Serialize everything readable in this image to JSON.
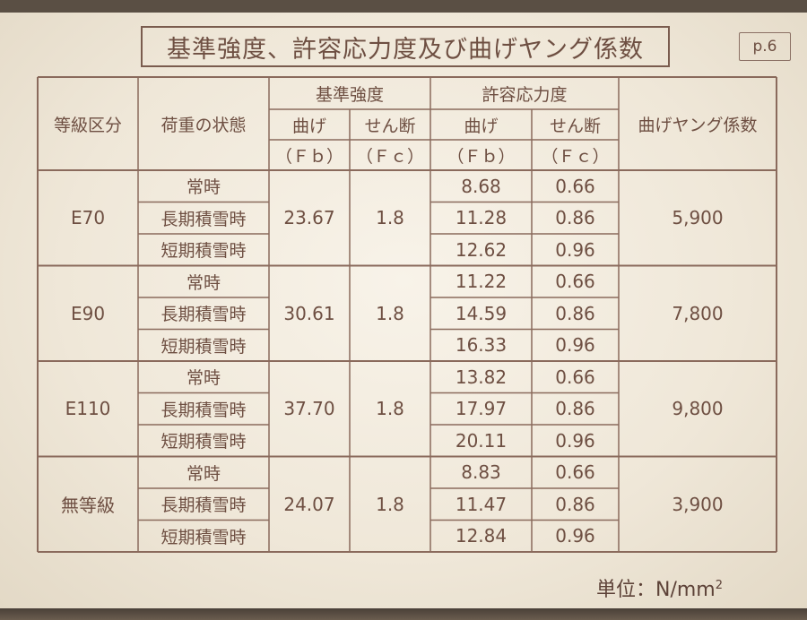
{
  "title": "基準強度、許容応力度及び曲げヤング係数",
  "page_label": "p.6",
  "headers": {
    "grade": "等級区分",
    "load_state": "荷重の状態",
    "base_strength": "基準強度",
    "allowable_stress": "許容応力度",
    "bending": "曲げ",
    "shear": "せん断",
    "fb": "（Ｆｂ）",
    "fc": "（Ｆｃ）",
    "young_modulus": "曲げヤング係数"
  },
  "conditions": [
    "常時",
    "長期積雪時",
    "短期積雪時"
  ],
  "grades": [
    {
      "name": "E70",
      "fb": "23.67",
      "fc": "1.8",
      "allow_bend": [
        "8.68",
        "11.28",
        "12.62"
      ],
      "allow_shear": [
        "0.66",
        "0.86",
        "0.96"
      ],
      "young": "5,900"
    },
    {
      "name": "E90",
      "fb": "30.61",
      "fc": "1.8",
      "allow_bend": [
        "11.22",
        "14.59",
        "16.33"
      ],
      "allow_shear": [
        "0.66",
        "0.86",
        "0.96"
      ],
      "young": "7,800"
    },
    {
      "name": "E110",
      "fb": "37.70",
      "fc": "1.8",
      "allow_bend": [
        "13.82",
        "17.97",
        "20.11"
      ],
      "allow_shear": [
        "0.66",
        "0.86",
        "0.96"
      ],
      "young": "9,800"
    },
    {
      "name": "無等級",
      "fb": "24.07",
      "fc": "1.8",
      "allow_bend": [
        "8.83",
        "11.47",
        "12.84"
      ],
      "allow_shear": [
        "0.66",
        "0.86",
        "0.96"
      ],
      "young": "3,900"
    }
  ],
  "unit_label": "単位：N/mm",
  "unit_exp": "2"
}
